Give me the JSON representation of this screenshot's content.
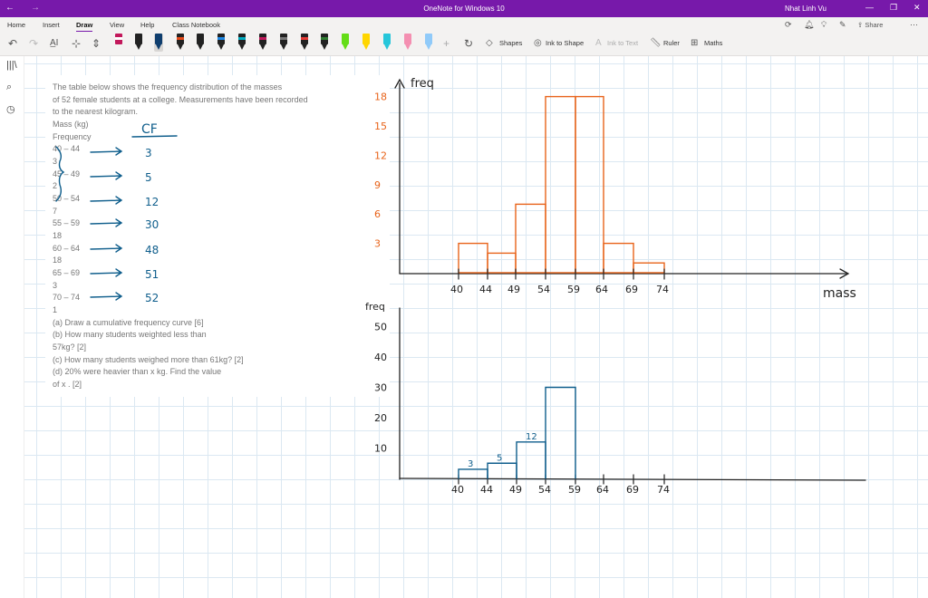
{
  "app": {
    "title": "OneNote for Windows 10",
    "user": "Nhat Linh Vu",
    "share_label": "Share",
    "nav_back": "←",
    "nav_forward": "→",
    "minimize": "—",
    "restore": "❐",
    "close": "✕"
  },
  "menu": [
    "Home",
    "Insert",
    "Draw",
    "View",
    "Help",
    "Class Notebook"
  ],
  "menu_active": "Draw",
  "ribbon": {
    "shapes_label": "Shapes",
    "ink_to_shape_label": "Ink to Shape",
    "ink_to_text_label": "Ink to Text",
    "ruler_label": "Ruler",
    "maths_label": "Maths"
  },
  "pen_colors": [
    "#e64a19",
    "#000000",
    "#000000",
    "#1e88e5",
    "#e64a19",
    "#000000",
    "#1e88e5",
    "#c2185b",
    "#555555",
    "#e53935",
    "#2e7d32",
    "#64dd17",
    "#ffeb3b",
    "#00bcd4",
    "#f48fb1",
    "#90caf9"
  ],
  "problem": {
    "lines": [
      "The table below shows the frequency distribution of the masses",
      "of 52 female students at a college. Measurements have been recorded",
      "to the nearest kilogram.",
      "Mass (kg)",
      "Frequency",
      "40 – 44",
      "3",
      "45 – 49",
      "2",
      "50 – 54",
      "7",
      "55 – 59",
      "18",
      "60 – 64",
      "18",
      "65 – 69",
      "3",
      "70 – 74",
      "1",
      "(a) Draw a cumulative frequency curve [6]",
      "(b) How many students weighted less than",
      "57kg? [2]",
      "(c) How many students weighed more than 61kg? [2]",
      "(d) 20% were heavier than x kg. Find the value",
      "of x . [2]"
    ]
  },
  "annotations": {
    "cf_header": "CF",
    "cf_values": [
      "3",
      "5",
      "12",
      "30",
      "48",
      "51",
      "52"
    ]
  },
  "histogram": {
    "y_label": "freq",
    "x_label": "mass",
    "y_ticks": [
      "3",
      "6",
      "9",
      "12",
      "15",
      "18"
    ],
    "x_ticks": [
      "40",
      "44",
      "49",
      "54",
      "59",
      "64",
      "69",
      "74"
    ],
    "bar_heights": [
      3,
      2,
      7,
      18,
      18,
      3,
      1
    ]
  },
  "cf_graph": {
    "y_label": "freq",
    "y_ticks": [
      "10",
      "20",
      "30",
      "40",
      "50"
    ],
    "x_ticks": [
      "40",
      "44",
      "49",
      "54",
      "59",
      "64",
      "69",
      "74"
    ],
    "step_labels": [
      "3",
      "5",
      "12"
    ],
    "step_values": [
      3,
      5,
      12,
      30
    ]
  },
  "colors": {
    "accent": "#7719aa",
    "orange_ink": "#e8641b",
    "blue_ink": "#0f5e8c",
    "black_ink": "#222222"
  }
}
